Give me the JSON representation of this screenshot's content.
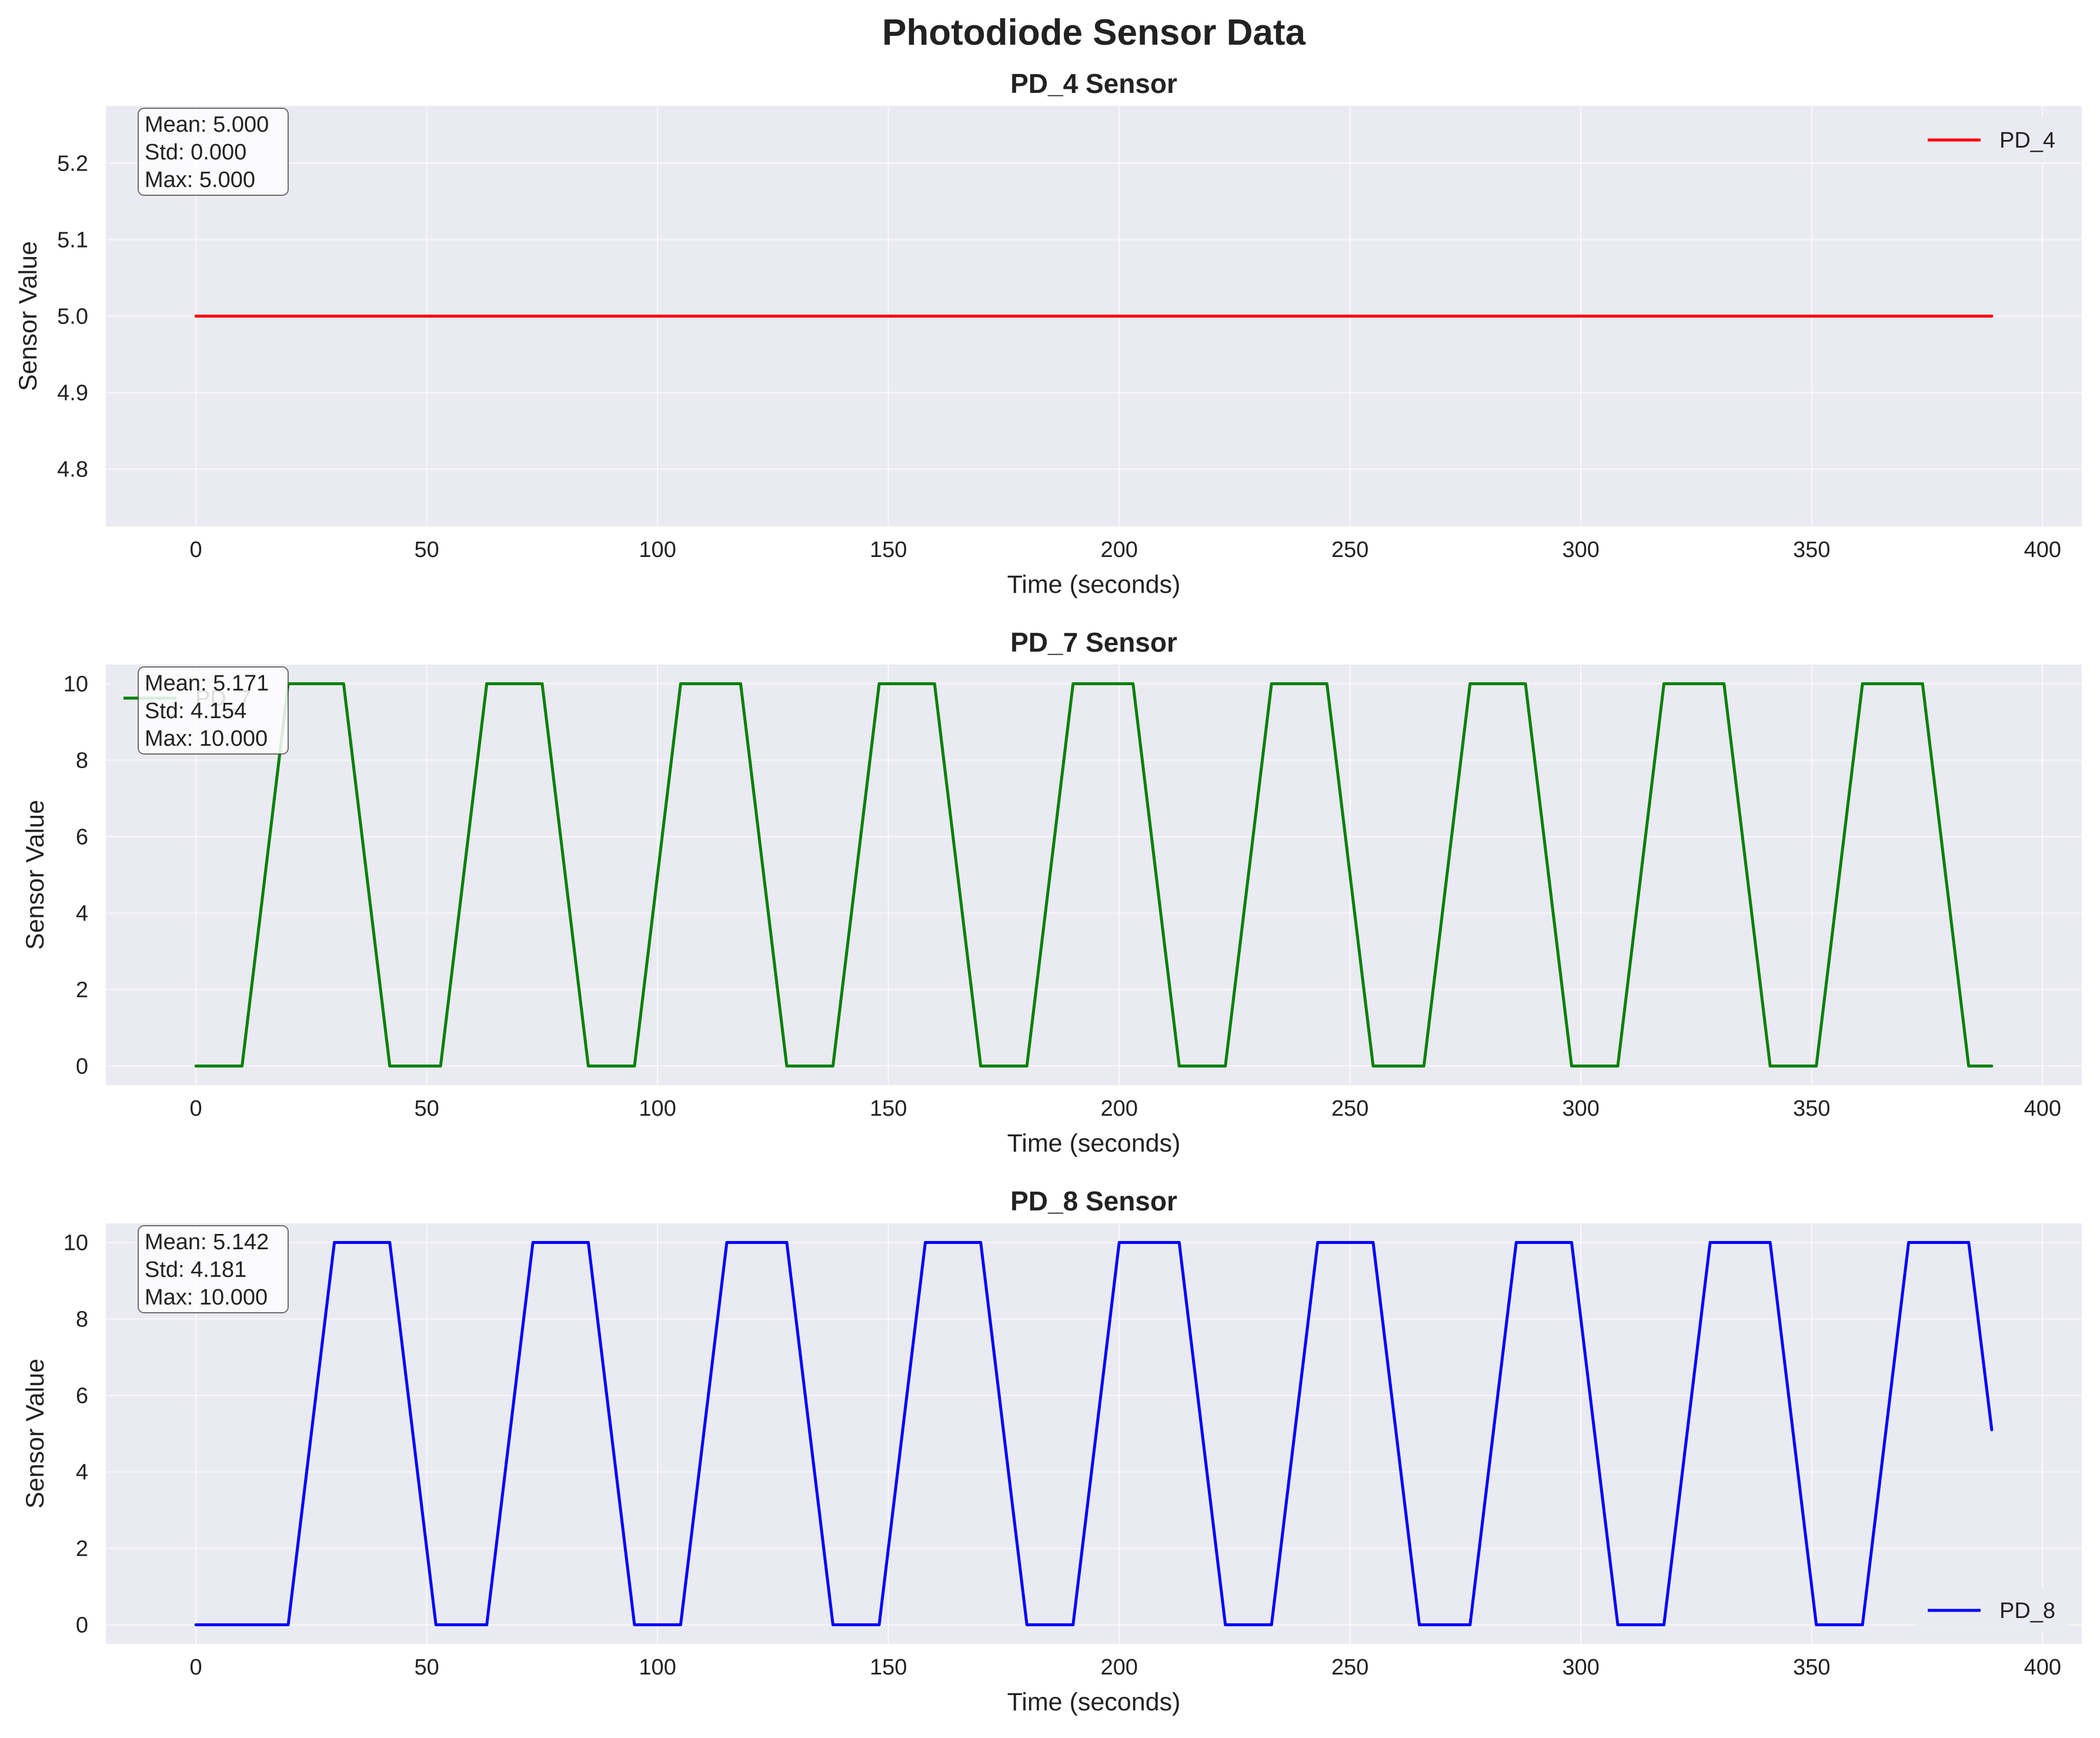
{
  "figure": {
    "title": "Photodiode Sensor Data"
  },
  "chart_data": [
    {
      "type": "line",
      "title": "PD_4 Sensor",
      "xlabel": "Time (seconds)",
      "ylabel": "Sensor Value",
      "xlim": [
        -19.5,
        408.5
      ],
      "ylim": [
        4.725,
        5.275
      ],
      "xticks": [
        0,
        50,
        100,
        150,
        200,
        250,
        300,
        350,
        400
      ],
      "yticks": [
        4.8,
        4.9,
        5.0,
        5.1,
        5.2
      ],
      "ytick_labels": [
        "4.8",
        "4.9",
        "5.0",
        "5.1",
        "5.2"
      ],
      "grid": true,
      "legend_position": "top-right",
      "stats": [
        "Mean: 5.000",
        "Std: 0.000",
        "Max: 5.000"
      ],
      "series": [
        {
          "name": "PD_4",
          "color": "#ff0000",
          "x": [
            0,
            389
          ],
          "y": [
            5.0,
            5.0
          ]
        }
      ]
    },
    {
      "type": "line",
      "title": "PD_7 Sensor",
      "xlabel": "Time (seconds)",
      "ylabel": "Sensor Value",
      "xlim": [
        -19.5,
        408.5
      ],
      "ylim": [
        -0.5,
        10.5
      ],
      "xticks": [
        0,
        50,
        100,
        150,
        200,
        250,
        300,
        350,
        400
      ],
      "yticks": [
        0,
        2,
        4,
        6,
        8,
        10
      ],
      "ytick_labels": [
        "0",
        "2",
        "4",
        "6",
        "8",
        "10"
      ],
      "grid": true,
      "legend_position": "top-left",
      "stats": [
        "Mean: 5.171",
        "Std: 4.154",
        "Max: 10.000"
      ],
      "series": [
        {
          "name": "PD_7",
          "color": "#008000",
          "x": [
            0,
            10,
            20,
            32,
            42,
            53,
            63,
            75,
            85,
            95,
            105,
            118,
            128,
            138,
            148,
            160,
            170,
            180,
            190,
            203,
            213,
            223,
            233,
            245,
            255,
            266,
            276,
            288,
            298,
            308,
            318,
            331,
            341,
            351,
            361,
            374,
            384,
            389
          ],
          "y": [
            0,
            0,
            10,
            10,
            0,
            0,
            10,
            10,
            0,
            0,
            10,
            10,
            0,
            0,
            10,
            10,
            0,
            0,
            10,
            10,
            0,
            0,
            10,
            10,
            0,
            0,
            10,
            10,
            0,
            0,
            10,
            10,
            0,
            0,
            10,
            10,
            0,
            0
          ]
        }
      ]
    },
    {
      "type": "line",
      "title": "PD_8 Sensor",
      "xlabel": "Time (seconds)",
      "ylabel": "Sensor Value",
      "xlim": [
        -19.5,
        408.5
      ],
      "ylim": [
        -0.5,
        10.5
      ],
      "xticks": [
        0,
        50,
        100,
        150,
        200,
        250,
        300,
        350,
        400
      ],
      "yticks": [
        0,
        2,
        4,
        6,
        8,
        10
      ],
      "ytick_labels": [
        "0",
        "2",
        "4",
        "6",
        "8",
        "10"
      ],
      "grid": true,
      "legend_position": "bottom-right",
      "stats": [
        "Mean: 5.142",
        "Std: 4.181",
        "Max: 10.000"
      ],
      "series": [
        {
          "name": "PD_8",
          "color": "#0000ff",
          "x": [
            0,
            20,
            30,
            42,
            52,
            63,
            73,
            85,
            95,
            105,
            115,
            128,
            138,
            148,
            158,
            170,
            180,
            190,
            200,
            213,
            223,
            233,
            243,
            255,
            265,
            276,
            286,
            298,
            308,
            318,
            328,
            341,
            351,
            361,
            371,
            384,
            389
          ],
          "y": [
            0,
            0,
            10,
            10,
            0,
            0,
            10,
            10,
            0,
            0,
            10,
            10,
            0,
            0,
            10,
            10,
            0,
            0,
            10,
            10,
            0,
            0,
            10,
            10,
            0,
            0,
            10,
            10,
            0,
            0,
            10,
            10,
            0,
            0,
            10,
            10,
            5.1
          ]
        }
      ]
    }
  ]
}
